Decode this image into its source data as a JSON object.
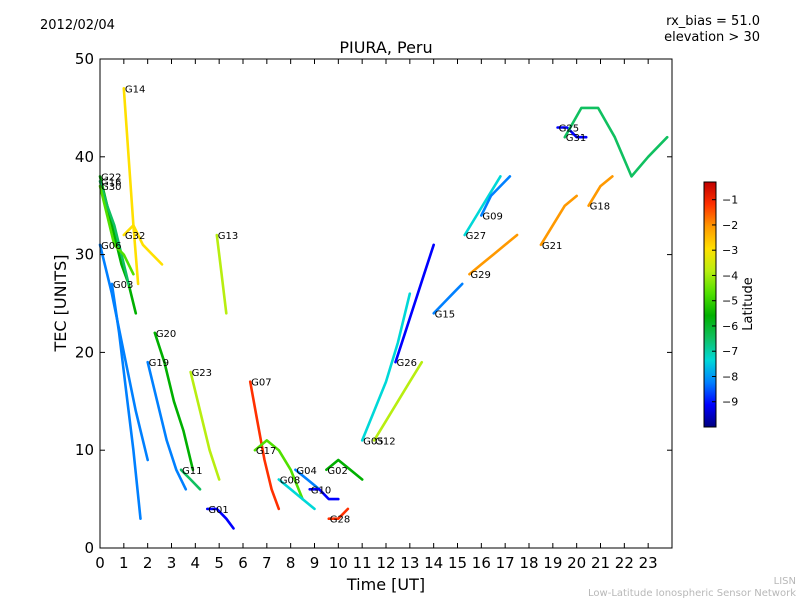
{
  "header": {
    "date": "2012/02/04",
    "rx_bias": "rx_bias = 51.0",
    "elevation": "elevation > 30"
  },
  "footer": {
    "line1": "LISN",
    "line2": "Low-Latitude Ionospheric Sensor Network"
  },
  "colors": {
    "colormap": [
      "#00007f",
      "#0000ff",
      "#0080ff",
      "#00d8d8",
      "#10c060",
      "#00b000",
      "#50e000",
      "#b8ee10",
      "#ffe000",
      "#ff9900",
      "#ff3000",
      "#c00000"
    ]
  },
  "chart_data": {
    "type": "line",
    "title": "PIURA, Peru",
    "xlabel": "Time [UT]",
    "ylabel": "TEC [UNITS]",
    "xlim": [
      0,
      24
    ],
    "ylim": [
      0,
      50
    ],
    "xticks": [
      0,
      1,
      2,
      3,
      4,
      5,
      6,
      7,
      8,
      9,
      10,
      11,
      12,
      13,
      14,
      15,
      16,
      17,
      18,
      19,
      20,
      21,
      22,
      23
    ],
    "yticks": [
      0,
      10,
      20,
      30,
      40,
      50
    ],
    "colorbar": {
      "label": "Latitude",
      "range": [
        -10,
        -0.3
      ],
      "ticks": [
        -9,
        -8,
        -7,
        -6,
        -5,
        -4,
        -3,
        -2,
        -1
      ]
    },
    "series": [
      {
        "name": "G22",
        "lat": -5.2,
        "x": [
          0.0,
          0.3,
          0.6,
          0.9,
          1.2,
          1.5
        ],
        "y": [
          38,
          35,
          32,
          29,
          27,
          24
        ]
      },
      {
        "name": "G16",
        "lat": -6.2,
        "x": [
          0.0,
          0.3,
          0.6,
          0.9,
          1.2
        ],
        "y": [
          37.5,
          35,
          33,
          30,
          27
        ]
      },
      {
        "name": "G30",
        "lat": -4.8,
        "x": [
          0.0,
          0.3,
          0.6,
          1.0,
          1.4
        ],
        "y": [
          37,
          34,
          31,
          30,
          28
        ]
      },
      {
        "name": "G14",
        "lat": -3.2,
        "x": [
          1.0,
          1.2,
          1.4,
          1.6
        ],
        "y": [
          47,
          40,
          33,
          27
        ]
      },
      {
        "name": "G32",
        "lat": -3.0,
        "x": [
          1.0,
          1.4,
          1.8,
          2.2,
          2.6
        ],
        "y": [
          32,
          33,
          31,
          30,
          29
        ]
      },
      {
        "name": "G06",
        "lat": -8.0,
        "x": [
          0.0,
          0.5,
          1.0,
          1.5,
          2.0
        ],
        "y": [
          31,
          26,
          20,
          14,
          9
        ]
      },
      {
        "name": "G03",
        "lat": -8.4,
        "x": [
          0.5,
          0.8,
          1.1,
          1.4,
          1.7
        ],
        "y": [
          27,
          22,
          16,
          10,
          3
        ]
      },
      {
        "name": "G20",
        "lat": -5.5,
        "x": [
          2.3,
          2.7,
          3.1,
          3.5,
          3.9
        ],
        "y": [
          22,
          19,
          15,
          12,
          8
        ]
      },
      {
        "name": "G19",
        "lat": -8.6,
        "x": [
          2.0,
          2.4,
          2.8,
          3.2,
          3.6
        ],
        "y": [
          19,
          15,
          11,
          8,
          6
        ]
      },
      {
        "name": "G13",
        "lat": -3.4,
        "x": [
          4.9,
          5.1,
          5.3
        ],
        "y": [
          32,
          28,
          24
        ]
      },
      {
        "name": "G23",
        "lat": -4.0,
        "x": [
          3.8,
          4.2,
          4.6,
          5.0
        ],
        "y": [
          18,
          14,
          10,
          7
        ]
      },
      {
        "name": "G07",
        "lat": -1.5,
        "x": [
          6.3,
          6.6,
          6.9,
          7.2,
          7.5
        ],
        "y": [
          17,
          13,
          9,
          6,
          4
        ]
      },
      {
        "name": "G11",
        "lat": -6.5,
        "x": [
          3.4,
          3.8,
          4.2
        ],
        "y": [
          8,
          7,
          6
        ]
      },
      {
        "name": "G01",
        "lat": -9.2,
        "x": [
          4.5,
          4.9,
          5.3,
          5.6
        ],
        "y": [
          4,
          4,
          3,
          2
        ]
      },
      {
        "name": "G17",
        "lat": -5.0,
        "x": [
          6.5,
          7.0,
          7.5,
          8.0,
          8.5
        ],
        "y": [
          10,
          11,
          10,
          8,
          5
        ]
      },
      {
        "name": "G08",
        "lat": -7.0,
        "x": [
          7.5,
          8.0,
          8.5,
          9.0
        ],
        "y": [
          7,
          6,
          5,
          4
        ]
      },
      {
        "name": "G04",
        "lat": -7.8,
        "x": [
          8.2,
          8.7,
          9.2
        ],
        "y": [
          8,
          7,
          6
        ]
      },
      {
        "name": "G02",
        "lat": -6.0,
        "x": [
          9.5,
          10.0,
          10.5,
          11.0
        ],
        "y": [
          8,
          9,
          8,
          7
        ]
      },
      {
        "name": "G10",
        "lat": -9.0,
        "x": [
          8.8,
          9.2,
          9.6,
          10.0
        ],
        "y": [
          6,
          6,
          5,
          5
        ]
      },
      {
        "name": "G28",
        "lat": -1.0,
        "x": [
          9.6,
          10.0,
          10.4
        ],
        "y": [
          3,
          3,
          4
        ]
      },
      {
        "name": "G05",
        "lat": -7.5,
        "x": [
          11.0,
          11.5,
          12.0,
          12.5,
          13.0
        ],
        "y": [
          11,
          14,
          17,
          21,
          26
        ]
      },
      {
        "name": "G26",
        "lat": -8.8,
        "x": [
          12.4,
          12.8,
          13.2,
          13.6,
          14.0
        ],
        "y": [
          19,
          22,
          25,
          28,
          31
        ]
      },
      {
        "name": "G12",
        "lat": -3.8,
        "x": [
          11.5,
          12.0,
          12.5,
          13.0,
          13.5
        ],
        "y": [
          11,
          13,
          15,
          17,
          19
        ]
      },
      {
        "name": "G15",
        "lat": -8.2,
        "x": [
          14.0,
          14.4,
          14.8,
          15.2
        ],
        "y": [
          24,
          25,
          26,
          27
        ]
      },
      {
        "name": "G27",
        "lat": -7.3,
        "x": [
          15.3,
          15.8,
          16.3,
          16.8
        ],
        "y": [
          32,
          34,
          36,
          38
        ]
      },
      {
        "name": "G09",
        "lat": -8.5,
        "x": [
          16.0,
          16.4,
          16.8,
          17.2
        ],
        "y": [
          34,
          36,
          37,
          38
        ]
      },
      {
        "name": "G29",
        "lat": -2.5,
        "x": [
          15.5,
          16.0,
          16.5,
          17.0,
          17.5
        ],
        "y": [
          28,
          29,
          30,
          31,
          32
        ]
      },
      {
        "name": "G21",
        "lat": -1.8,
        "x": [
          18.5,
          19.0,
          19.5,
          20.0
        ],
        "y": [
          31,
          33,
          35,
          36
        ]
      },
      {
        "name": "G25",
        "lat": -8.9,
        "x": [
          19.2,
          19.6,
          20.0,
          20.4
        ],
        "y": [
          43,
          43,
          42,
          42
        ]
      },
      {
        "name": "G31",
        "lat": -6.8,
        "x": [
          19.5,
          20.2,
          20.9,
          21.6,
          22.3,
          23.0,
          23.8
        ],
        "y": [
          42,
          45,
          45,
          42,
          38,
          40,
          42
        ]
      },
      {
        "name": "G18",
        "lat": -2.2,
        "x": [
          20.5,
          21.0,
          21.5
        ],
        "y": [
          35,
          37,
          38
        ]
      }
    ]
  }
}
